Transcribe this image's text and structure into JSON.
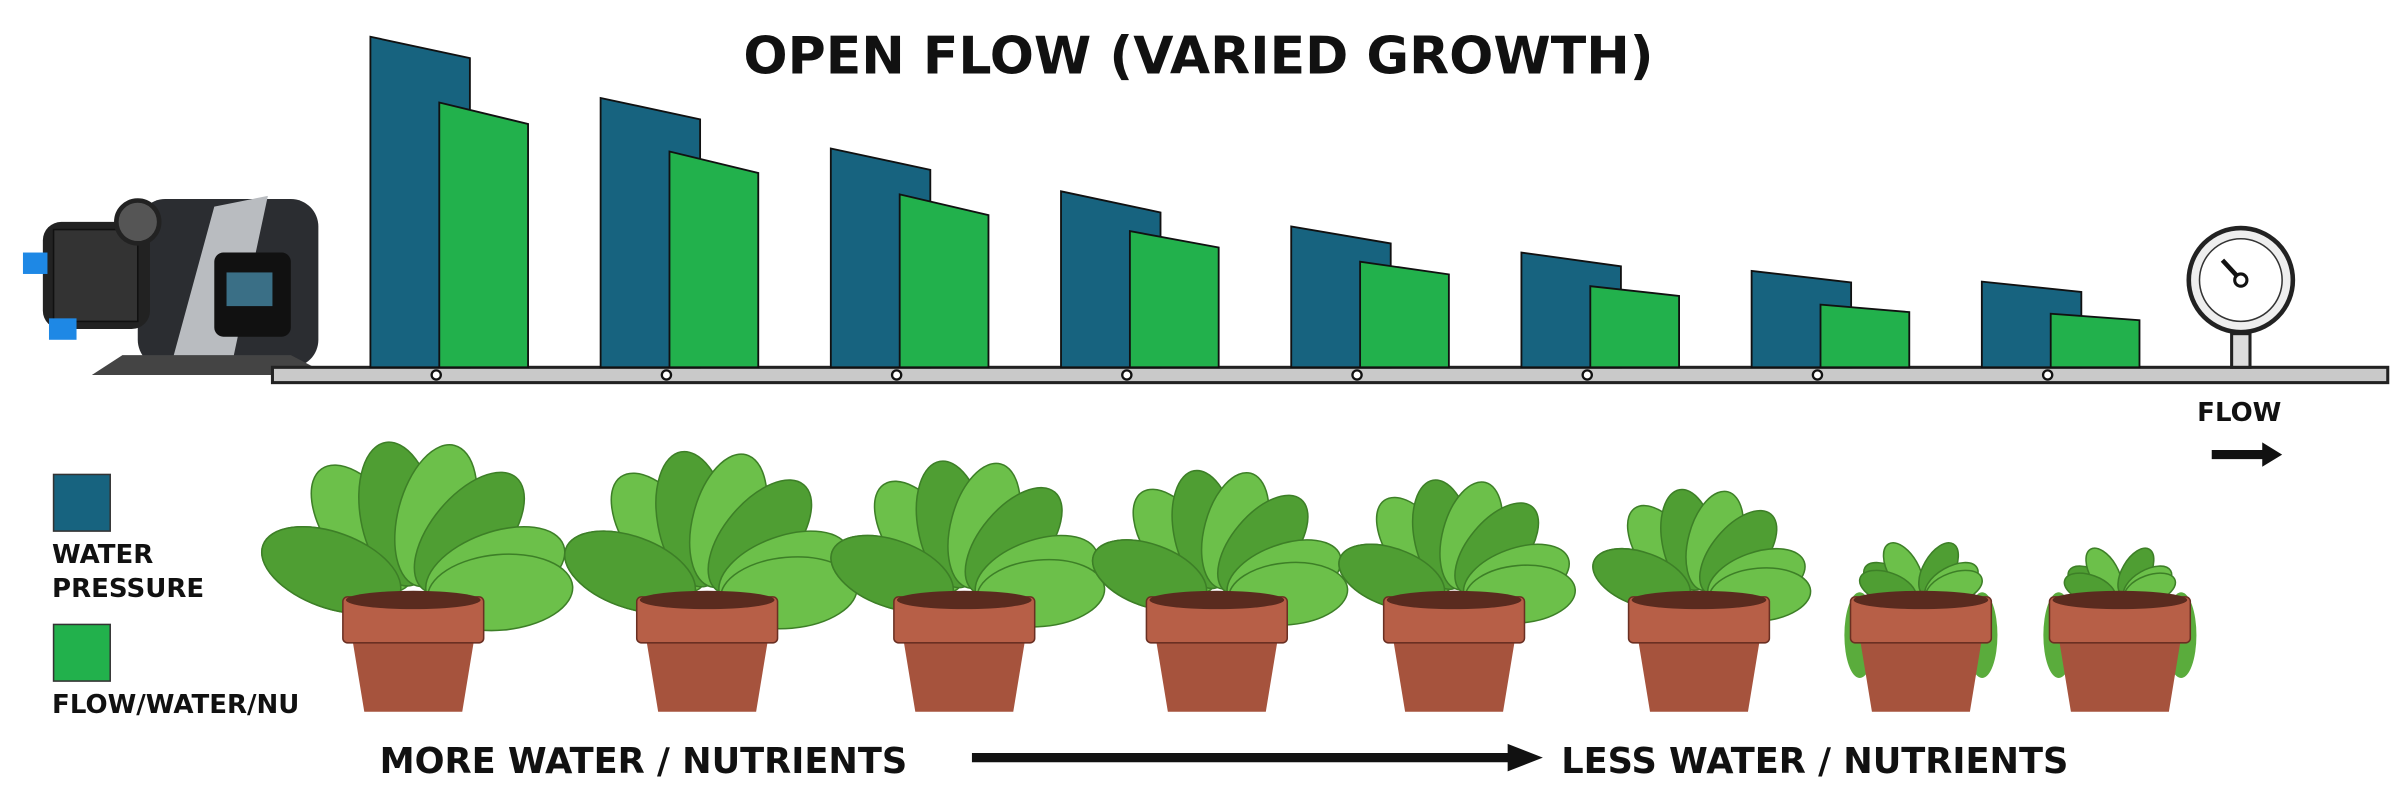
{
  "chart_data": {
    "type": "bar",
    "title": "OPEN FLOW (VARIED GROWTH)",
    "series": [
      {
        "name": "WATER PRESSURE",
        "color": "#17637f",
        "values": [
          216,
          176,
          143,
          115,
          92,
          75,
          63,
          56
        ]
      },
      {
        "name": "FLOW/WATER/NUTRIENTS",
        "color": "#22b14c",
        "values": [
          173,
          141,
          113,
          89,
          69,
          53,
          41,
          35
        ]
      }
    ],
    "ylim": [
      0,
      220
    ],
    "flow_label": "FLOW",
    "left_label": "MORE WATER / NUTRIENTS",
    "right_label": "LESS WATER / NUTRIENTS"
  }
}
